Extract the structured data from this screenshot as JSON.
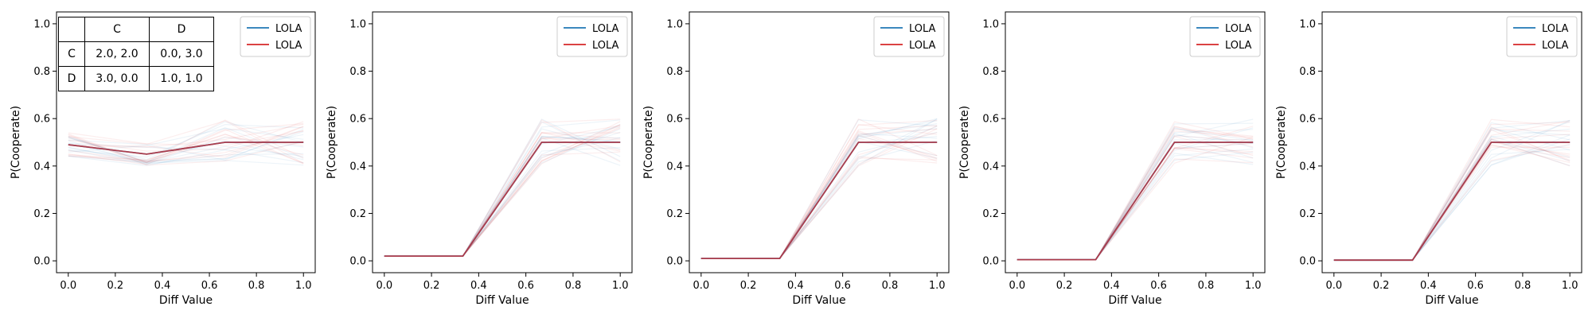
{
  "chart_data": [
    {
      "type": "line",
      "title": "",
      "xlabel": "Diff Value",
      "ylabel": "P(Cooperate)",
      "xlim": [
        -0.05,
        1.05
      ],
      "ylim": [
        -0.05,
        1.05
      ],
      "xticks": [
        "0.0",
        "0.2",
        "0.4",
        "0.6",
        "0.8",
        "1.0"
      ],
      "yticks": [
        "0.0",
        "0.2",
        "0.4",
        "0.6",
        "0.8",
        "1.0"
      ],
      "x": [
        0,
        0.333,
        0.667,
        1.0
      ],
      "series": [
        {
          "name": "LOLA",
          "color": "#1f77b4",
          "values": [
            0.49,
            0.45,
            0.5,
            0.5
          ]
        },
        {
          "name": "LOLA",
          "color": "#d62728",
          "values": [
            0.49,
            0.45,
            0.5,
            0.5
          ]
        }
      ],
      "legend": "top-right",
      "grid": false,
      "payoff_table": {
        "col_headers": [
          "C",
          "D"
        ],
        "rows": [
          {
            "label": "C",
            "cells": [
              "2.0, 2.0",
              "0.0, 3.0"
            ]
          },
          {
            "label": "D",
            "cells": [
              "3.0, 0.0",
              "1.0, 1.0"
            ]
          }
        ]
      }
    },
    {
      "type": "line",
      "title": "",
      "xlabel": "Diff Value",
      "ylabel": "P(Cooperate)",
      "xlim": [
        -0.05,
        1.05
      ],
      "ylim": [
        -0.05,
        1.05
      ],
      "xticks": [
        "0.0",
        "0.2",
        "0.4",
        "0.6",
        "0.8",
        "1.0"
      ],
      "yticks": [
        "0.0",
        "0.2",
        "0.4",
        "0.6",
        "0.8",
        "1.0"
      ],
      "x": [
        0,
        0.333,
        0.667,
        1.0
      ],
      "series": [
        {
          "name": "LOLA",
          "color": "#1f77b4",
          "values": [
            0.02,
            0.02,
            0.5,
            0.5
          ]
        },
        {
          "name": "LOLA",
          "color": "#d62728",
          "values": [
            0.02,
            0.02,
            0.5,
            0.5
          ]
        }
      ],
      "legend": "top-right",
      "grid": false
    },
    {
      "type": "line",
      "title": "",
      "xlabel": "Diff Value",
      "ylabel": "P(Cooperate)",
      "xlim": [
        -0.05,
        1.05
      ],
      "ylim": [
        -0.05,
        1.05
      ],
      "xticks": [
        "0.0",
        "0.2",
        "0.4",
        "0.6",
        "0.8",
        "1.0"
      ],
      "yticks": [
        "0.0",
        "0.2",
        "0.4",
        "0.6",
        "0.8",
        "1.0"
      ],
      "x": [
        0,
        0.333,
        0.667,
        1.0
      ],
      "series": [
        {
          "name": "LOLA",
          "color": "#1f77b4",
          "values": [
            0.01,
            0.01,
            0.5,
            0.5
          ]
        },
        {
          "name": "LOLA",
          "color": "#d62728",
          "values": [
            0.01,
            0.01,
            0.5,
            0.5
          ]
        }
      ],
      "legend": "top-right",
      "grid": false
    },
    {
      "type": "line",
      "title": "",
      "xlabel": "Diff Value",
      "ylabel": "P(Cooperate)",
      "xlim": [
        -0.05,
        1.05
      ],
      "ylim": [
        -0.05,
        1.05
      ],
      "xticks": [
        "0.0",
        "0.2",
        "0.4",
        "0.6",
        "0.8",
        "1.0"
      ],
      "yticks": [
        "0.0",
        "0.2",
        "0.4",
        "0.6",
        "0.8",
        "1.0"
      ],
      "x": [
        0,
        0.333,
        0.667,
        1.0
      ],
      "series": [
        {
          "name": "LOLA",
          "color": "#1f77b4",
          "values": [
            0.005,
            0.005,
            0.5,
            0.5
          ]
        },
        {
          "name": "LOLA",
          "color": "#d62728",
          "values": [
            0.005,
            0.005,
            0.5,
            0.5
          ]
        }
      ],
      "legend": "top-right",
      "grid": false
    },
    {
      "type": "line",
      "title": "",
      "xlabel": "Diff Value",
      "ylabel": "P(Cooperate)",
      "xlim": [
        -0.05,
        1.05
      ],
      "ylim": [
        -0.05,
        1.05
      ],
      "xticks": [
        "0.0",
        "0.2",
        "0.4",
        "0.6",
        "0.8",
        "1.0"
      ],
      "yticks": [
        "0.0",
        "0.2",
        "0.4",
        "0.6",
        "0.8",
        "1.0"
      ],
      "x": [
        0,
        0.333,
        0.667,
        1.0
      ],
      "series": [
        {
          "name": "LOLA",
          "color": "#1f77b4",
          "values": [
            0.003,
            0.003,
            0.5,
            0.5
          ]
        },
        {
          "name": "LOLA",
          "color": "#d62728",
          "values": [
            0.003,
            0.003,
            0.5,
            0.5
          ]
        }
      ],
      "legend": "top-right",
      "grid": false
    }
  ]
}
